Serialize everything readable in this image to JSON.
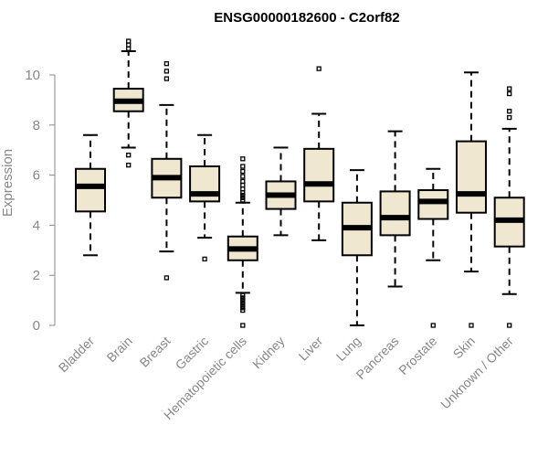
{
  "chart_data": {
    "type": "boxplot",
    "title": "ENSG00000182600 - C2orf82",
    "xlabel": "",
    "ylabel": "Expression",
    "ylim": [
      0,
      10.5
    ],
    "yticks": [
      0,
      2,
      4,
      6,
      8,
      10
    ],
    "box_fill": "#efe7cf",
    "box_stroke": "#000000",
    "axis_color": "#888888",
    "categories": [
      "Bladder",
      "Brain",
      "Breast",
      "Gastric",
      "Hematopoietic cells",
      "Kidney",
      "Liver",
      "Lung",
      "Pancreas",
      "Prostate",
      "Skin",
      "Unknown / Other"
    ],
    "boxes": [
      {
        "q1": 4.55,
        "median": 5.55,
        "q3": 6.25,
        "whisker_low": 2.8,
        "whisker_high": 7.6,
        "outliers": []
      },
      {
        "q1": 8.55,
        "median": 8.95,
        "q3": 9.45,
        "whisker_low": 7.1,
        "whisker_high": 10.95,
        "outliers": [
          6.4,
          6.8,
          11.05,
          11.2,
          11.35
        ]
      },
      {
        "q1": 5.1,
        "median": 5.9,
        "q3": 6.65,
        "whisker_low": 2.95,
        "whisker_high": 8.8,
        "outliers": [
          1.9,
          9.85,
          10.15,
          10.45
        ]
      },
      {
        "q1": 4.95,
        "median": 5.25,
        "q3": 6.35,
        "whisker_low": 3.5,
        "whisker_high": 7.6,
        "outliers": [
          2.65
        ]
      },
      {
        "q1": 2.6,
        "median": 3.05,
        "q3": 3.55,
        "whisker_low": 1.3,
        "whisker_high": 4.9,
        "outliers": [
          0.0,
          0.6,
          0.7,
          0.8,
          0.9,
          1.0,
          1.1,
          1.2,
          5.0,
          5.1,
          5.2,
          5.3,
          5.45,
          5.6,
          5.75,
          5.95,
          6.15,
          6.35,
          6.65
        ]
      },
      {
        "q1": 4.65,
        "median": 5.2,
        "q3": 5.75,
        "whisker_low": 3.6,
        "whisker_high": 7.1,
        "outliers": []
      },
      {
        "q1": 4.95,
        "median": 5.65,
        "q3": 7.05,
        "whisker_low": 3.4,
        "whisker_high": 8.45,
        "outliers": [
          10.25
        ]
      },
      {
        "q1": 2.8,
        "median": 3.9,
        "q3": 4.9,
        "whisker_low": 0.0,
        "whisker_high": 6.2,
        "outliers": []
      },
      {
        "q1": 3.6,
        "median": 4.3,
        "q3": 5.35,
        "whisker_low": 1.55,
        "whisker_high": 7.75,
        "outliers": []
      },
      {
        "q1": 4.25,
        "median": 4.95,
        "q3": 5.4,
        "whisker_low": 2.6,
        "whisker_high": 6.25,
        "outliers": [
          0.0
        ]
      },
      {
        "q1": 4.5,
        "median": 5.25,
        "q3": 7.35,
        "whisker_low": 2.15,
        "whisker_high": 10.1,
        "outliers": [
          0.0
        ]
      },
      {
        "q1": 3.15,
        "median": 4.2,
        "q3": 5.1,
        "whisker_low": 1.25,
        "whisker_high": 7.85,
        "outliers": [
          0.0,
          8.3,
          8.55,
          9.25,
          9.45
        ]
      }
    ]
  }
}
